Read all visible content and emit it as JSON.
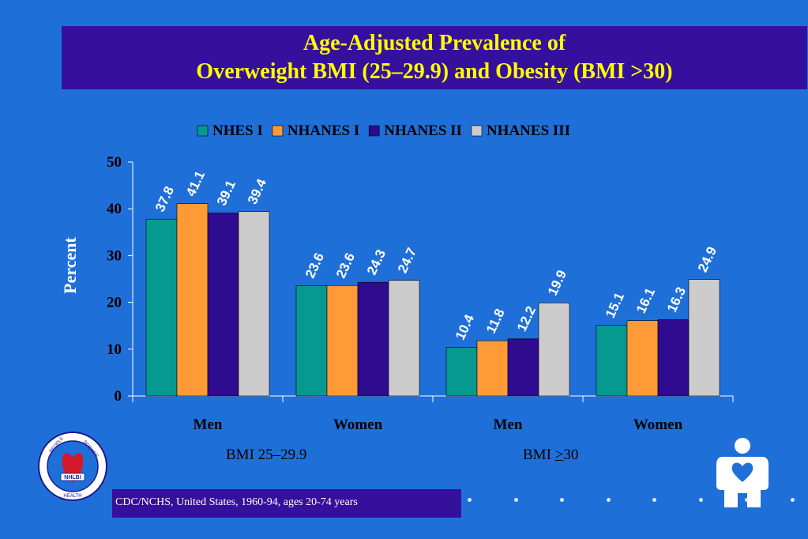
{
  "title": {
    "line1": "Age-Adjusted Prevalence of",
    "line2": "Overweight BMI (25–29.9) and Obesity (BMI >30)"
  },
  "group_labels": {
    "left": "BMI 25–29.9",
    "right_prefix": "BMI ",
    "right_symbol": ">",
    "right_suffix": "30"
  },
  "source": "CDC/NCHS, United States, 1960-94, ages 20-74 years",
  "logo": {
    "icon": "nhlbi-seal-logo",
    "text": "NHLBI",
    "ring_top_left": "PEOPLE",
    "ring_top_right": "SCIENCE",
    "ring_bottom": "HEALTH"
  },
  "person_icon": "person-heart-icon",
  "colors": {
    "background": "#1f6fd9",
    "title_box": "#35109c",
    "title_text": "#ffff00"
  },
  "chart_data": {
    "type": "bar",
    "ylabel": "Percent",
    "xlabel": "",
    "ylim": [
      0,
      50
    ],
    "yticks": [
      0,
      10,
      20,
      30,
      40,
      50
    ],
    "grid": false,
    "legend_position": "top",
    "categories": [
      "Men",
      "Women",
      "Men",
      "Women"
    ],
    "series": [
      {
        "name": "NHES I",
        "color": "#05998f",
        "values": [
          37.8,
          23.6,
          10.4,
          15.1
        ]
      },
      {
        "name": "NHANES I",
        "color": "#ff9a36",
        "values": [
          41.1,
          23.6,
          11.8,
          16.1
        ]
      },
      {
        "name": "NHANES II",
        "color": "#2e0b8f",
        "values": [
          39.1,
          24.3,
          12.2,
          16.3
        ]
      },
      {
        "name": "NHANES III",
        "color": "#cccccc",
        "values": [
          39.4,
          24.7,
          19.9,
          24.9
        ]
      }
    ]
  }
}
